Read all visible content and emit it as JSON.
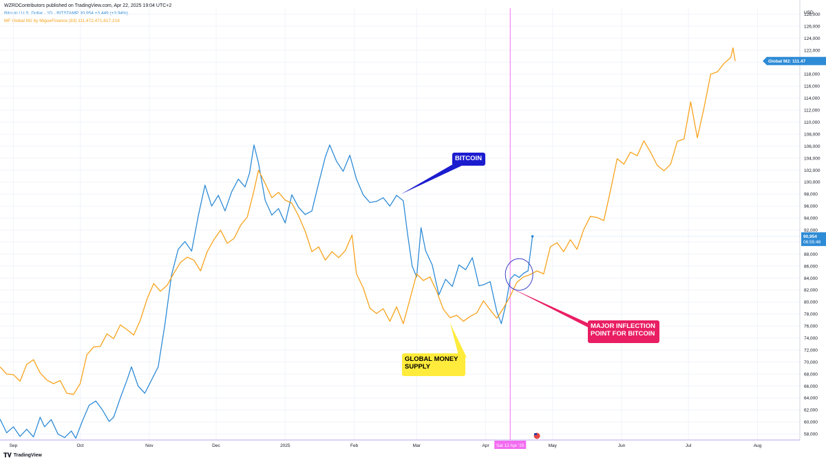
{
  "header": {
    "published": "WZRDContributors published on TradingView.com, Apr 22, 2025 19:04 UTC+2"
  },
  "legend": {
    "btc": "Bitcoin / U.S. Dollar · 1D · BITSTAMP  90,954  +3,449 (+3.94%)",
    "m2": "MF Global M2 by MigueFinance (83)  111,472,471,617,219"
  },
  "footer": {
    "logo_text": "TradingView"
  },
  "colors": {
    "btc": "#2e8bd6",
    "m2": "#f7a21b",
    "marker": "#f36bf0",
    "bitcoin_label": "#1c1ccf",
    "m2_label": "#ffeb3b",
    "inflection_label": "#e91e63"
  },
  "chart_data": {
    "type": "line",
    "y_axis": {
      "unit_label": "USD",
      "range": [
        57000,
        129000
      ],
      "ticks": [
        "128,000",
        "126,000",
        "124,000",
        "122,000",
        "120,000",
        "118,000",
        "116,000",
        "114,000",
        "112,000",
        "110,000",
        "108,000",
        "106,000",
        "104,000",
        "102,000",
        "100,000",
        "98,000",
        "96,000",
        "94,000",
        "92,000",
        "90,000",
        "88,000",
        "86,000",
        "84,000",
        "82,000",
        "80,000",
        "78,000",
        "76,000",
        "74,000",
        "72,000",
        "70,000",
        "68,000",
        "66,000",
        "64,000",
        "62,000",
        "60,000",
        "58,000"
      ],
      "tick_values": [
        128000,
        126000,
        124000,
        122000,
        120000,
        118000,
        116000,
        114000,
        112000,
        110000,
        108000,
        106000,
        104000,
        102000,
        100000,
        98000,
        96000,
        94000,
        92000,
        90000,
        88000,
        86000,
        84000,
        82000,
        80000,
        78000,
        76000,
        74000,
        72000,
        70000,
        68000,
        66000,
        64000,
        62000,
        60000,
        58000
      ]
    },
    "x_axis": {
      "range": [
        "2024-08-26",
        "2025-08-20"
      ],
      "ticks": [
        {
          "date": "2024-09-01",
          "label": "Sep"
        },
        {
          "date": "2024-10-01",
          "label": "Oct"
        },
        {
          "date": "2024-11-01",
          "label": "Nov"
        },
        {
          "date": "2024-12-01",
          "label": "Dec"
        },
        {
          "date": "2025-01-01",
          "label": "2025"
        },
        {
          "date": "2025-02-01",
          "label": "Feb"
        },
        {
          "date": "2025-03-01",
          "label": "Mar"
        },
        {
          "date": "2025-04-01",
          "label": "Apr"
        },
        {
          "date": "2025-05-01",
          "label": "May"
        },
        {
          "date": "2025-06-01",
          "label": "Jun"
        },
        {
          "date": "2025-07-01",
          "label": "Jul"
        },
        {
          "date": "2025-08-01",
          "label": "Aug"
        }
      ]
    },
    "series": [
      {
        "name": "Bitcoin / U.S. Dollar",
        "color": "#2e8bd6",
        "points": [
          [
            "2024-08-26",
            60500
          ],
          [
            "2024-08-29",
            58200
          ],
          [
            "2024-09-01",
            59200
          ],
          [
            "2024-09-04",
            57600
          ],
          [
            "2024-09-07",
            58800
          ],
          [
            "2024-09-10",
            57500
          ],
          [
            "2024-09-13",
            60800
          ],
          [
            "2024-09-15",
            59200
          ],
          [
            "2024-09-18",
            60400
          ],
          [
            "2024-09-21",
            58000
          ],
          [
            "2024-09-24",
            57400
          ],
          [
            "2024-09-27",
            58500
          ],
          [
            "2024-09-29",
            57300
          ],
          [
            "2024-10-02",
            60200
          ],
          [
            "2024-10-05",
            62800
          ],
          [
            "2024-10-08",
            63500
          ],
          [
            "2024-10-11",
            62000
          ],
          [
            "2024-10-14",
            60100
          ],
          [
            "2024-10-16",
            60800
          ],
          [
            "2024-10-19",
            64000
          ],
          [
            "2024-10-22",
            67000
          ],
          [
            "2024-10-24",
            69200
          ],
          [
            "2024-10-27",
            66000
          ],
          [
            "2024-10-30",
            64800
          ],
          [
            "2024-11-02",
            67000
          ],
          [
            "2024-11-05",
            69200
          ],
          [
            "2024-11-08",
            76200
          ],
          [
            "2024-11-11",
            84500
          ],
          [
            "2024-11-14",
            88800
          ],
          [
            "2024-11-17",
            90100
          ],
          [
            "2024-11-20",
            88500
          ],
          [
            "2024-11-23",
            94400
          ],
          [
            "2024-11-26",
            99500
          ],
          [
            "2024-11-29",
            96000
          ],
          [
            "2024-12-02",
            97800
          ],
          [
            "2024-12-05",
            95200
          ],
          [
            "2024-12-08",
            98400
          ],
          [
            "2024-12-11",
            100500
          ],
          [
            "2024-12-14",
            99200
          ],
          [
            "2024-12-16",
            101500
          ],
          [
            "2024-12-18",
            106200
          ],
          [
            "2024-12-20",
            103200
          ],
          [
            "2024-12-23",
            97000
          ],
          [
            "2024-12-26",
            94500
          ],
          [
            "2024-12-29",
            95600
          ],
          [
            "2025-01-01",
            93200
          ],
          [
            "2025-01-04",
            97900
          ],
          [
            "2025-01-07",
            95800
          ],
          [
            "2025-01-10",
            94600
          ],
          [
            "2025-01-13",
            95200
          ],
          [
            "2025-01-16",
            99800
          ],
          [
            "2025-01-19",
            104200
          ],
          [
            "2025-01-21",
            106200
          ],
          [
            "2025-01-24",
            103500
          ],
          [
            "2025-01-27",
            101800
          ],
          [
            "2025-01-30",
            104500
          ],
          [
            "2025-02-02",
            100500
          ],
          [
            "2025-02-05",
            97900
          ],
          [
            "2025-02-08",
            96600
          ],
          [
            "2025-02-11",
            96800
          ],
          [
            "2025-02-14",
            97400
          ],
          [
            "2025-02-17",
            96000
          ],
          [
            "2025-02-20",
            97800
          ],
          [
            "2025-02-23",
            96900
          ],
          [
            "2025-02-25",
            91200
          ],
          [
            "2025-02-27",
            86000
          ],
          [
            "2025-03-01",
            84200
          ],
          [
            "2025-03-03",
            92400
          ],
          [
            "2025-03-05",
            88600
          ],
          [
            "2025-03-08",
            86200
          ],
          [
            "2025-03-11",
            81200
          ],
          [
            "2025-03-14",
            83800
          ],
          [
            "2025-03-17",
            82600
          ],
          [
            "2025-03-20",
            86200
          ],
          [
            "2025-03-23",
            85400
          ],
          [
            "2025-03-26",
            87400
          ],
          [
            "2025-03-29",
            82700
          ],
          [
            "2025-03-31",
            82900
          ],
          [
            "2025-04-03",
            83400
          ],
          [
            "2025-04-06",
            78400
          ],
          [
            "2025-04-08",
            76400
          ],
          [
            "2025-04-10",
            79500
          ],
          [
            "2025-04-12",
            83800
          ],
          [
            "2025-04-14",
            84600
          ],
          [
            "2025-04-16",
            84100
          ],
          [
            "2025-04-18",
            84800
          ],
          [
            "2025-04-20",
            85200
          ],
          [
            "2025-04-22",
            90954
          ]
        ]
      },
      {
        "name": "MF Global M2 by MigueFinance (83)",
        "color": "#f7a21b",
        "points": [
          [
            "2024-08-26",
            69200
          ],
          [
            "2024-08-29",
            68000
          ],
          [
            "2024-09-01",
            67900
          ],
          [
            "2024-09-04",
            66800
          ],
          [
            "2024-09-07",
            69600
          ],
          [
            "2024-09-10",
            70400
          ],
          [
            "2024-09-13",
            68200
          ],
          [
            "2024-09-16",
            67000
          ],
          [
            "2024-09-19",
            66400
          ],
          [
            "2024-09-22",
            66900
          ],
          [
            "2024-09-25",
            64800
          ],
          [
            "2024-09-28",
            64600
          ],
          [
            "2024-10-01",
            66400
          ],
          [
            "2024-10-04",
            71200
          ],
          [
            "2024-10-07",
            72500
          ],
          [
            "2024-10-10",
            72600
          ],
          [
            "2024-10-13",
            74700
          ],
          [
            "2024-10-16",
            73900
          ],
          [
            "2024-10-19",
            76200
          ],
          [
            "2024-10-22",
            75400
          ],
          [
            "2024-10-25",
            74500
          ],
          [
            "2024-10-28",
            77000
          ],
          [
            "2024-10-31",
            80500
          ],
          [
            "2024-11-03",
            83100
          ],
          [
            "2024-11-06",
            81800
          ],
          [
            "2024-11-09",
            82800
          ],
          [
            "2024-11-12",
            84800
          ],
          [
            "2024-11-15",
            86600
          ],
          [
            "2024-11-18",
            87500
          ],
          [
            "2024-11-21",
            87000
          ],
          [
            "2024-11-24",
            85200
          ],
          [
            "2024-11-27",
            88400
          ],
          [
            "2024-11-30",
            90400
          ],
          [
            "2024-12-03",
            92000
          ],
          [
            "2024-12-06",
            89800
          ],
          [
            "2024-12-09",
            90600
          ],
          [
            "2024-12-12",
            92800
          ],
          [
            "2024-12-15",
            94200
          ],
          [
            "2024-12-18",
            98600
          ],
          [
            "2024-12-20",
            102000
          ],
          [
            "2024-12-23",
            99800
          ],
          [
            "2024-12-26",
            97400
          ],
          [
            "2024-12-29",
            98300
          ],
          [
            "2025-01-01",
            97000
          ],
          [
            "2025-01-04",
            96500
          ],
          [
            "2025-01-07",
            94400
          ],
          [
            "2025-01-10",
            91800
          ],
          [
            "2025-01-13",
            88400
          ],
          [
            "2025-01-16",
            89200
          ],
          [
            "2025-01-19",
            87000
          ],
          [
            "2025-01-22",
            88400
          ],
          [
            "2025-01-25",
            87400
          ],
          [
            "2025-01-28",
            88600
          ],
          [
            "2025-01-31",
            91200
          ],
          [
            "2025-02-02",
            84700
          ],
          [
            "2025-02-05",
            82400
          ],
          [
            "2025-02-08",
            79000
          ],
          [
            "2025-02-11",
            78100
          ],
          [
            "2025-02-14",
            78900
          ],
          [
            "2025-02-17",
            76800
          ],
          [
            "2025-02-20",
            79200
          ],
          [
            "2025-02-23",
            76400
          ],
          [
            "2025-02-26",
            80500
          ],
          [
            "2025-03-01",
            84700
          ],
          [
            "2025-03-04",
            83600
          ],
          [
            "2025-03-07",
            84200
          ],
          [
            "2025-03-10",
            81800
          ],
          [
            "2025-03-13",
            78800
          ],
          [
            "2025-03-16",
            77400
          ],
          [
            "2025-03-19",
            77800
          ],
          [
            "2025-03-22",
            76800
          ],
          [
            "2025-03-25",
            77600
          ],
          [
            "2025-03-28",
            78200
          ],
          [
            "2025-03-31",
            80200
          ],
          [
            "2025-04-03",
            78700
          ],
          [
            "2025-04-06",
            77300
          ],
          [
            "2025-04-09",
            79000
          ],
          [
            "2025-04-12",
            81000
          ],
          [
            "2025-04-15",
            83300
          ],
          [
            "2025-04-18",
            84200
          ],
          [
            "2025-04-21",
            84600
          ],
          [
            "2025-04-24",
            85200
          ],
          [
            "2025-04-27",
            84700
          ],
          [
            "2025-04-30",
            89200
          ],
          [
            "2025-05-03",
            89900
          ],
          [
            "2025-05-06",
            88400
          ],
          [
            "2025-05-09",
            90400
          ],
          [
            "2025-05-12",
            88800
          ],
          [
            "2025-05-15",
            92100
          ],
          [
            "2025-05-18",
            94300
          ],
          [
            "2025-05-21",
            94100
          ],
          [
            "2025-05-24",
            93600
          ],
          [
            "2025-05-27",
            98600
          ],
          [
            "2025-05-30",
            103900
          ],
          [
            "2025-06-02",
            103000
          ],
          [
            "2025-06-05",
            105000
          ],
          [
            "2025-06-08",
            104400
          ],
          [
            "2025-06-11",
            106900
          ],
          [
            "2025-06-14",
            105000
          ],
          [
            "2025-06-17",
            102800
          ],
          [
            "2025-06-20",
            101900
          ],
          [
            "2025-06-23",
            103000
          ],
          [
            "2025-06-26",
            106800
          ],
          [
            "2025-06-29",
            107200
          ],
          [
            "2025-07-02",
            113400
          ],
          [
            "2025-07-05",
            107400
          ],
          [
            "2025-07-08",
            112400
          ],
          [
            "2025-07-11",
            118000
          ],
          [
            "2025-07-14",
            118400
          ],
          [
            "2025-07-17",
            119800
          ],
          [
            "2025-07-20",
            120800
          ],
          [
            "2025-07-21",
            122400
          ],
          [
            "2025-07-22",
            120200
          ]
        ]
      }
    ],
    "last_values": {
      "btc": {
        "value": 90954,
        "price": "90,954",
        "time": "06:55:48"
      },
      "m2": {
        "value": 120200,
        "text": "Global M2: 111.47"
      }
    },
    "vertical_marker": {
      "date": "2025-04-12",
      "label": "Sat 12 Apr '25"
    },
    "annotations": [
      {
        "text": "BITCOIN",
        "anchor": [
          "2025-02-22",
          98000
        ]
      },
      {
        "text": "GLOBAL MONEY\nSUPPLY",
        "anchor": [
          "2025-03-16",
          76500
        ]
      },
      {
        "text": "MAJOR INFLECTION\nPOINT FOR BITCOIN",
        "anchor": [
          "2025-04-12",
          82400
        ]
      }
    ],
    "highlight_circle": {
      "center": [
        "2025-04-16",
        84600
      ]
    },
    "grid": true,
    "legend_position": "top-left"
  }
}
